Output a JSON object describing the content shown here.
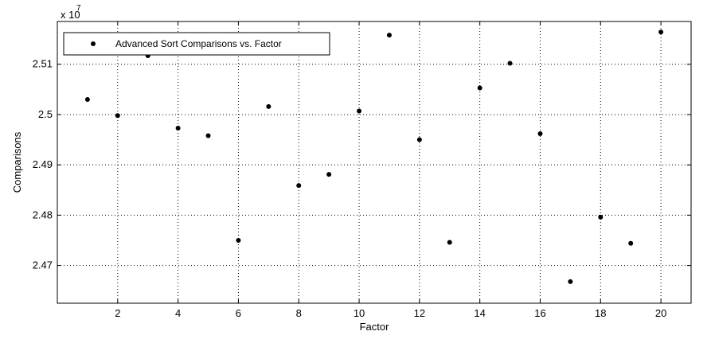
{
  "chart_data": {
    "type": "scatter",
    "xlabel": "Factor",
    "ylabel": "Comparisons",
    "exponent_label": "x 10",
    "exponent_power": "7",
    "xlim": [
      0,
      21
    ],
    "ylim": [
      2.4625,
      2.5185
    ],
    "xticks": [
      2,
      4,
      6,
      8,
      10,
      12,
      14,
      16,
      18,
      20
    ],
    "yticks": [
      2.47,
      2.48,
      2.49,
      2.5,
      2.51
    ],
    "ytick_labels": [
      "2.47",
      "2.48",
      "2.49",
      "2.5",
      "2.51"
    ],
    "grid": true,
    "grid_style": "dotted",
    "legend_position": "top-left",
    "marker_color": "#000000",
    "series": [
      {
        "name": "Advanced Sort Comparisons vs. Factor",
        "x": [
          1,
          2,
          3,
          4,
          5,
          6,
          7,
          8,
          9,
          10,
          11,
          12,
          13,
          14,
          15,
          16,
          17,
          18,
          19,
          20
        ],
        "y": [
          2.503,
          2.4998,
          2.5117,
          2.4973,
          2.4958,
          2.475,
          2.5016,
          2.4859,
          2.4881,
          2.5007,
          2.5158,
          2.495,
          2.4746,
          2.5053,
          2.5102,
          2.4962,
          2.4668,
          2.4796,
          2.4744,
          2.5164
        ]
      }
    ]
  }
}
